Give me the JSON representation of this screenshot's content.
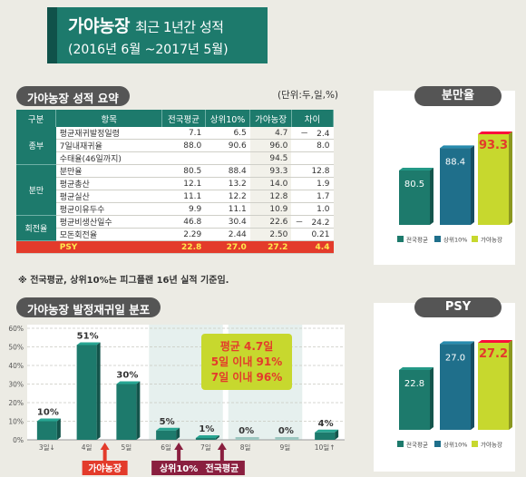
{
  "header": {
    "title": "가야농장",
    "subtitle": "최근 1년간 성적",
    "period": "(2016년 6월 ~2017년 5월)"
  },
  "summary": {
    "title": "가야농장 성적 요약",
    "unit": "(단위:두,일,%)",
    "columns": [
      "구분",
      "항목",
      "전국평균",
      "상위10%",
      "가야농장",
      "차이"
    ],
    "groups": [
      {
        "name": "종부",
        "rows": [
          {
            "item": "평균재귀발정일령",
            "avg": "7.1",
            "top": "6.5",
            "farm": "4.7",
            "diff": "－　2.4"
          },
          {
            "item": "7일내재귀율",
            "avg": "88.0",
            "top": "90.6",
            "farm": "96.0",
            "diff": "8.0"
          },
          {
            "item": "수태율(46일까지)",
            "avg": "",
            "top": "",
            "farm": "94.5",
            "diff": ""
          }
        ]
      },
      {
        "name": "분만",
        "rows": [
          {
            "item": "분만율",
            "avg": "80.5",
            "top": "88.4",
            "farm": "93.3",
            "diff": "12.8"
          },
          {
            "item": "평균총산",
            "avg": "12.1",
            "top": "13.2",
            "farm": "14.0",
            "diff": "1.9"
          },
          {
            "item": "평균실산",
            "avg": "11.1",
            "top": "12.2",
            "farm": "12.8",
            "diff": "1.7"
          },
          {
            "item": "평균이유두수",
            "avg": "9.9",
            "top": "11.1",
            "farm": "10.9",
            "diff": "1.0"
          }
        ]
      },
      {
        "name": "회전율",
        "rows": [
          {
            "item": "평균비생산일수",
            "avg": "46.8",
            "top": "30.4",
            "farm": "22.6",
            "diff": "－　24.2"
          },
          {
            "item": "모돈회전율",
            "avg": "2.29",
            "top": "2.44",
            "farm": "2.50",
            "diff": "0.21"
          }
        ]
      }
    ],
    "psy_row": {
      "item": "PSY",
      "avg": "22.8",
      "top": "27.0",
      "farm": "27.2",
      "diff": "4.4"
    },
    "note": "※ 전국평균, 상위10%는 피그플랜 16년 실적 기준임."
  },
  "chart_data": [
    {
      "type": "bar",
      "title": "가야농장 발정재귀일 분포",
      "categories": [
        "3일↓",
        "4일",
        "5일",
        "6일",
        "7일",
        "8일",
        "9일",
        "10일↑"
      ],
      "values": [
        10,
        51,
        30,
        5,
        1,
        0,
        0,
        4
      ],
      "value_labels": [
        "10%",
        "51%",
        "30%",
        "5%",
        "1%",
        "0%",
        "0%",
        "4%"
      ],
      "ylim": [
        0,
        60
      ],
      "yticks": [
        "0%",
        "10%",
        "20%",
        "30%",
        "40%",
        "50%",
        "60%"
      ],
      "grid": true,
      "markers": [
        {
          "label": "가야농장",
          "category": "4일",
          "color": "#e33b2b"
        },
        {
          "label": "상위10%",
          "category": "6일",
          "color": "#8a1f3f"
        },
        {
          "label": "전국평균",
          "category": "7일",
          "color": "#8a1f3f"
        }
      ],
      "callout": [
        "평균 4.7일",
        "5일 이내 91%",
        "7일 이내 96%"
      ],
      "colors": {
        "bar": "#1d7a6c",
        "highlight_band": "#e6f0ee",
        "callout_bg": "#c7d82e",
        "callout_text": "#e33b2b"
      }
    },
    {
      "type": "bar",
      "title": "분만율",
      "categories": [
        "전국평균",
        "상위10%",
        "가야농장"
      ],
      "values": [
        80.5,
        88.4,
        93.3
      ],
      "value_labels": [
        "80.5",
        "88.4",
        "93.3"
      ],
      "colors": [
        "#1d7a6c",
        "#1f6f8b",
        "#c7d82e"
      ]
    },
    {
      "type": "bar",
      "title": "PSY",
      "categories": [
        "전국평균",
        "상위10%",
        "가야농장"
      ],
      "values": [
        22.8,
        27.0,
        27.2
      ],
      "value_labels": [
        "22.8",
        "27.0",
        "27.2"
      ],
      "colors": [
        "#1d7a6c",
        "#1f6f8b",
        "#c7d82e"
      ]
    }
  ]
}
